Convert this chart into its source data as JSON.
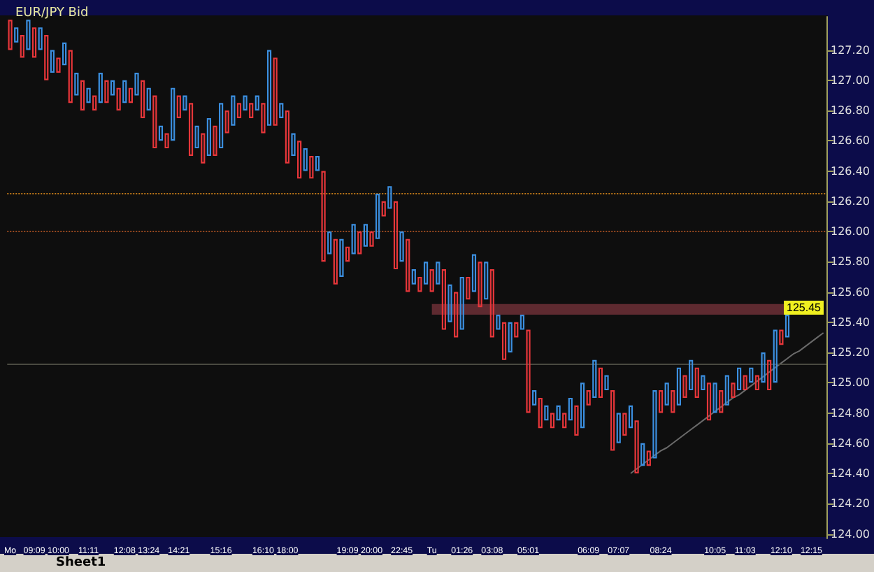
{
  "chart_data": {
    "type": "bar",
    "title": "EUR/JPY Bid",
    "categories": [
      "Mo",
      null,
      null,
      null,
      "09:09",
      null,
      null,
      null,
      "10:00",
      null,
      null,
      null,
      null,
      "11:11",
      null,
      null,
      null,
      null,
      null,
      "12:08",
      null,
      null,
      null,
      "13:24",
      null,
      null,
      null,
      null,
      "14:21",
      null,
      null,
      null,
      null,
      null,
      null,
      "15:16",
      null,
      null,
      null,
      null,
      null,
      null,
      "16:10",
      null,
      null,
      null,
      "18:00",
      null,
      null,
      null,
      null,
      null,
      null,
      null,
      null,
      null,
      "19:09",
      null,
      null,
      null,
      "20:00",
      null,
      null,
      null,
      null,
      "22:45",
      null,
      null,
      null,
      null,
      "Tu",
      null,
      null,
      null,
      null,
      "01:26",
      null,
      null,
      null,
      null,
      "03:08",
      null,
      null,
      null,
      null,
      null,
      "05:01",
      null,
      null,
      null,
      null,
      null,
      null,
      null,
      null,
      null,
      "06:09",
      null,
      null,
      null,
      null,
      "07:07",
      null,
      null,
      null,
      null,
      null,
      null,
      "08:24",
      null,
      null,
      null,
      null,
      null,
      null,
      null,
      null,
      "10:05",
      null,
      null,
      null,
      null,
      "11:03",
      null,
      null,
      null,
      null,
      null,
      "12:10",
      null,
      null,
      null,
      null,
      "12:15",
      null,
      null
    ],
    "series": [
      {
        "base": [
          127.2,
          127.25,
          127.15,
          127.2,
          127.15,
          127.2,
          127.0,
          127.05,
          127.05,
          127.1,
          126.85,
          126.9,
          126.8,
          126.85,
          126.8,
          126.85,
          126.85,
          126.9,
          126.8,
          126.85,
          126.85,
          126.9,
          126.75,
          126.8,
          126.55,
          126.6,
          126.55,
          126.6,
          126.75,
          126.8,
          126.5,
          126.55,
          126.45,
          126.5,
          126.5,
          126.55,
          126.65,
          126.7,
          126.75,
          126.8,
          126.75,
          126.8,
          126.65,
          126.7,
          126.7,
          126.75,
          126.45,
          126.5,
          126.35,
          126.4,
          126.35,
          126.4,
          125.8,
          125.85,
          125.65,
          125.7,
          125.8,
          125.85,
          125.85,
          125.9,
          125.9,
          125.95,
          126.1,
          126.15,
          125.75,
          125.8,
          125.6,
          125.65,
          125.6,
          125.65,
          125.6,
          125.65,
          125.35,
          125.4,
          125.3,
          125.35,
          125.55,
          125.6,
          125.5,
          125.55,
          125.3,
          125.35,
          125.15,
          125.2,
          125.3,
          125.35,
          124.8,
          124.85,
          124.7,
          124.75,
          124.7,
          124.75,
          124.7,
          124.75,
          124.65,
          124.7,
          124.85,
          124.9,
          124.9,
          124.95,
          124.55,
          124.6,
          124.65,
          124.7,
          124.4,
          124.45,
          124.45,
          124.5,
          124.8,
          124.85,
          124.8,
          124.85,
          124.9,
          124.95,
          124.9,
          124.95,
          124.75,
          124.8,
          124.8,
          124.85,
          124.9,
          124.95,
          124.95,
          125.0,
          124.95,
          125.0,
          124.95,
          125.0,
          125.25,
          125.3,
          null,
          null,
          null,
          null,
          null,
          null
        ],
        "values": [
          0.2,
          0.1,
          0.15,
          0.2,
          0.2,
          0.15,
          0.3,
          0.15,
          0.1,
          0.15,
          0.35,
          0.15,
          0.2,
          0.1,
          0.1,
          0.2,
          0.15,
          0.1,
          0.15,
          0.15,
          0.1,
          0.15,
          0.25,
          0.15,
          0.35,
          0.1,
          0.1,
          0.35,
          0.15,
          0.1,
          0.35,
          0.15,
          0.2,
          0.25,
          0.2,
          0.3,
          0.15,
          0.2,
          0.1,
          0.1,
          0.1,
          0.1,
          0.2,
          0.5,
          0.45,
          0.1,
          0.35,
          0.15,
          0.25,
          0.15,
          0.15,
          0.1,
          0.6,
          0.15,
          0.3,
          0.25,
          0.1,
          0.2,
          0.15,
          0.15,
          0.1,
          0.3,
          0.1,
          0.15,
          0.45,
          0.2,
          0.35,
          0.1,
          0.1,
          0.15,
          0.15,
          0.15,
          0.4,
          0.25,
          0.3,
          0.35,
          0.15,
          0.25,
          0.3,
          0.25,
          0.45,
          0.1,
          0.25,
          0.2,
          0.1,
          0.1,
          0.55,
          0.1,
          0.2,
          0.1,
          0.1,
          0.1,
          0.1,
          0.15,
          0.2,
          0.3,
          0.1,
          0.25,
          0.2,
          0.1,
          0.4,
          0.2,
          0.15,
          0.15,
          0.35,
          0.15,
          0.1,
          0.45,
          0.15,
          0.15,
          0.15,
          0.25,
          0.15,
          0.2,
          0.2,
          0.1,
          0.25,
          0.2,
          0.15,
          0.2,
          0.1,
          0.15,
          0.1,
          0.1,
          0.1,
          0.2,
          0.2,
          0.35,
          0.1,
          0.15,
          null,
          null,
          null,
          null,
          null,
          null
        ],
        "colors": [
          "#e8363a",
          "#3b8fe0",
          "#e8363a",
          "#3b8fe0",
          "#e8363a",
          "#3b8fe0",
          "#e8363a",
          "#3b8fe0",
          "#e8363a",
          "#3b8fe0",
          "#e8363a",
          "#3b8fe0",
          "#e8363a",
          "#3b8fe0",
          "#e8363a",
          "#3b8fe0",
          "#e8363a",
          "#3b8fe0",
          "#e8363a",
          "#3b8fe0",
          "#e8363a",
          "#3b8fe0",
          "#e8363a",
          "#3b8fe0",
          "#e8363a",
          "#3b8fe0",
          "#e8363a",
          "#3b8fe0",
          "#e8363a",
          "#3b8fe0",
          "#e8363a",
          "#3b8fe0",
          "#e8363a",
          "#3b8fe0",
          "#e8363a",
          "#3b8fe0",
          "#e8363a",
          "#3b8fe0",
          "#e8363a",
          "#3b8fe0",
          "#e8363a",
          "#3b8fe0",
          "#e8363a",
          "#3b8fe0",
          "#e8363a",
          "#3b8fe0",
          "#e8363a",
          "#3b8fe0",
          "#e8363a",
          "#3b8fe0",
          "#e8363a",
          "#3b8fe0",
          "#e8363a",
          "#3b8fe0",
          "#e8363a",
          "#3b8fe0",
          "#e8363a",
          "#3b8fe0",
          "#e8363a",
          "#3b8fe0",
          "#e8363a",
          "#3b8fe0",
          "#e8363a",
          "#3b8fe0",
          "#e8363a",
          "#3b8fe0",
          "#e8363a",
          "#3b8fe0",
          "#e8363a",
          "#3b8fe0",
          "#e8363a",
          "#3b8fe0",
          "#e8363a",
          "#3b8fe0",
          "#e8363a",
          "#3b8fe0",
          "#e8363a",
          "#3b8fe0",
          "#e8363a",
          "#3b8fe0",
          "#e8363a",
          "#3b8fe0",
          "#e8363a",
          "#3b8fe0",
          "#e8363a",
          "#3b8fe0",
          "#e8363a",
          "#3b8fe0",
          "#e8363a",
          "#3b8fe0",
          "#e8363a",
          "#3b8fe0",
          "#e8363a",
          "#3b8fe0",
          "#e8363a",
          "#3b8fe0",
          "#e8363a",
          "#3b8fe0",
          "#e8363a",
          "#3b8fe0",
          "#e8363a",
          "#3b8fe0",
          "#e8363a",
          "#3b8fe0",
          "#e8363a",
          "#3b8fe0",
          "#e8363a",
          "#3b8fe0",
          "#e8363a",
          "#3b8fe0",
          "#e8363a",
          "#3b8fe0",
          "#e8363a",
          "#3b8fe0",
          "#e8363a",
          "#3b8fe0",
          "#e8363a",
          "#3b8fe0",
          "#e8363a",
          "#3b8fe0",
          "#e8363a",
          "#3b8fe0",
          "#e8363a",
          "#3b8fe0",
          "#e8363a",
          "#3b8fe0",
          "#e8363a",
          "#3b8fe0",
          "#e8363a",
          "#3b8fe0",
          null,
          null,
          null,
          null,
          null,
          null
        ]
      },
      {
        "type": "line",
        "color": "#6a6a6a",
        "line_style": "solid",
        "values": [
          null,
          null,
          null,
          null,
          null,
          null,
          null,
          null,
          null,
          null,
          null,
          null,
          null,
          null,
          null,
          null,
          null,
          null,
          null,
          null,
          null,
          null,
          null,
          null,
          null,
          null,
          null,
          null,
          null,
          null,
          null,
          null,
          null,
          null,
          null,
          null,
          null,
          null,
          null,
          null,
          null,
          null,
          null,
          null,
          null,
          null,
          null,
          null,
          null,
          null,
          null,
          null,
          null,
          null,
          null,
          null,
          null,
          null,
          null,
          null,
          null,
          null,
          null,
          null,
          null,
          null,
          null,
          null,
          null,
          null,
          null,
          null,
          null,
          null,
          null,
          null,
          null,
          null,
          null,
          null,
          null,
          null,
          null,
          null,
          null,
          null,
          null,
          null,
          null,
          null,
          null,
          null,
          null,
          null,
          null,
          null,
          null,
          null,
          null,
          null,
          null,
          null,
          null,
          124.4,
          124.43,
          124.46,
          124.49,
          124.52,
          124.55,
          124.57,
          124.6,
          124.63,
          124.66,
          124.69,
          124.72,
          124.75,
          124.78,
          124.81,
          124.84,
          124.87,
          124.9,
          124.92,
          124.95,
          124.98,
          125.01,
          125.04,
          125.07,
          125.1,
          125.13,
          125.16,
          125.19,
          125.21,
          125.24,
          125.27,
          125.3,
          125.33
        ]
      }
    ],
    "marker": "none",
    "ylim": [
      123.97,
      127.42
    ],
    "yticks": [
      {
        "value": 124,
        "label": "124.00"
      },
      {
        "value": 124.2,
        "label": "124.20"
      },
      {
        "value": 124.4,
        "label": "124.40"
      },
      {
        "value": 124.6,
        "label": "124.60"
      },
      {
        "value": 124.8,
        "label": "124.80"
      },
      {
        "value": 125,
        "label": "125.00"
      },
      {
        "value": 125.2,
        "label": "125.20"
      },
      {
        "value": 125.4,
        "label": "125.40"
      },
      {
        "value": 125.6,
        "label": "125.60"
      },
      {
        "value": 125.8,
        "label": "125.80"
      },
      {
        "value": 126,
        "label": "126.00"
      },
      {
        "value": 126.2,
        "label": "126.20"
      },
      {
        "value": 126.4,
        "label": "126.40"
      },
      {
        "value": 126.6,
        "label": "126.60"
      },
      {
        "value": 126.8,
        "label": "126.80"
      },
      {
        "value": 127,
        "label": "127.00"
      },
      {
        "value": 127.2,
        "label": "127.20"
      }
    ],
    "ref_lines": [
      {
        "axis": "y",
        "value": 126.25,
        "color": "#c07818",
        "line_style": "dotted"
      },
      {
        "axis": "y",
        "value": 126.0,
        "color": "#9a4a20",
        "line_style": "dotted"
      },
      {
        "axis": "y",
        "value": 125.12,
        "color": "#4a4a40",
        "line_style": "solid"
      }
    ],
    "bands": [
      {
        "axis": "y",
        "from": 125.45,
        "to": 125.52,
        "color": "#5e2a30"
      }
    ],
    "annotations": [
      {
        "text": "125.45",
        "y": 125.45
      },
      "Sheet1"
    ],
    "grid": false
  }
}
